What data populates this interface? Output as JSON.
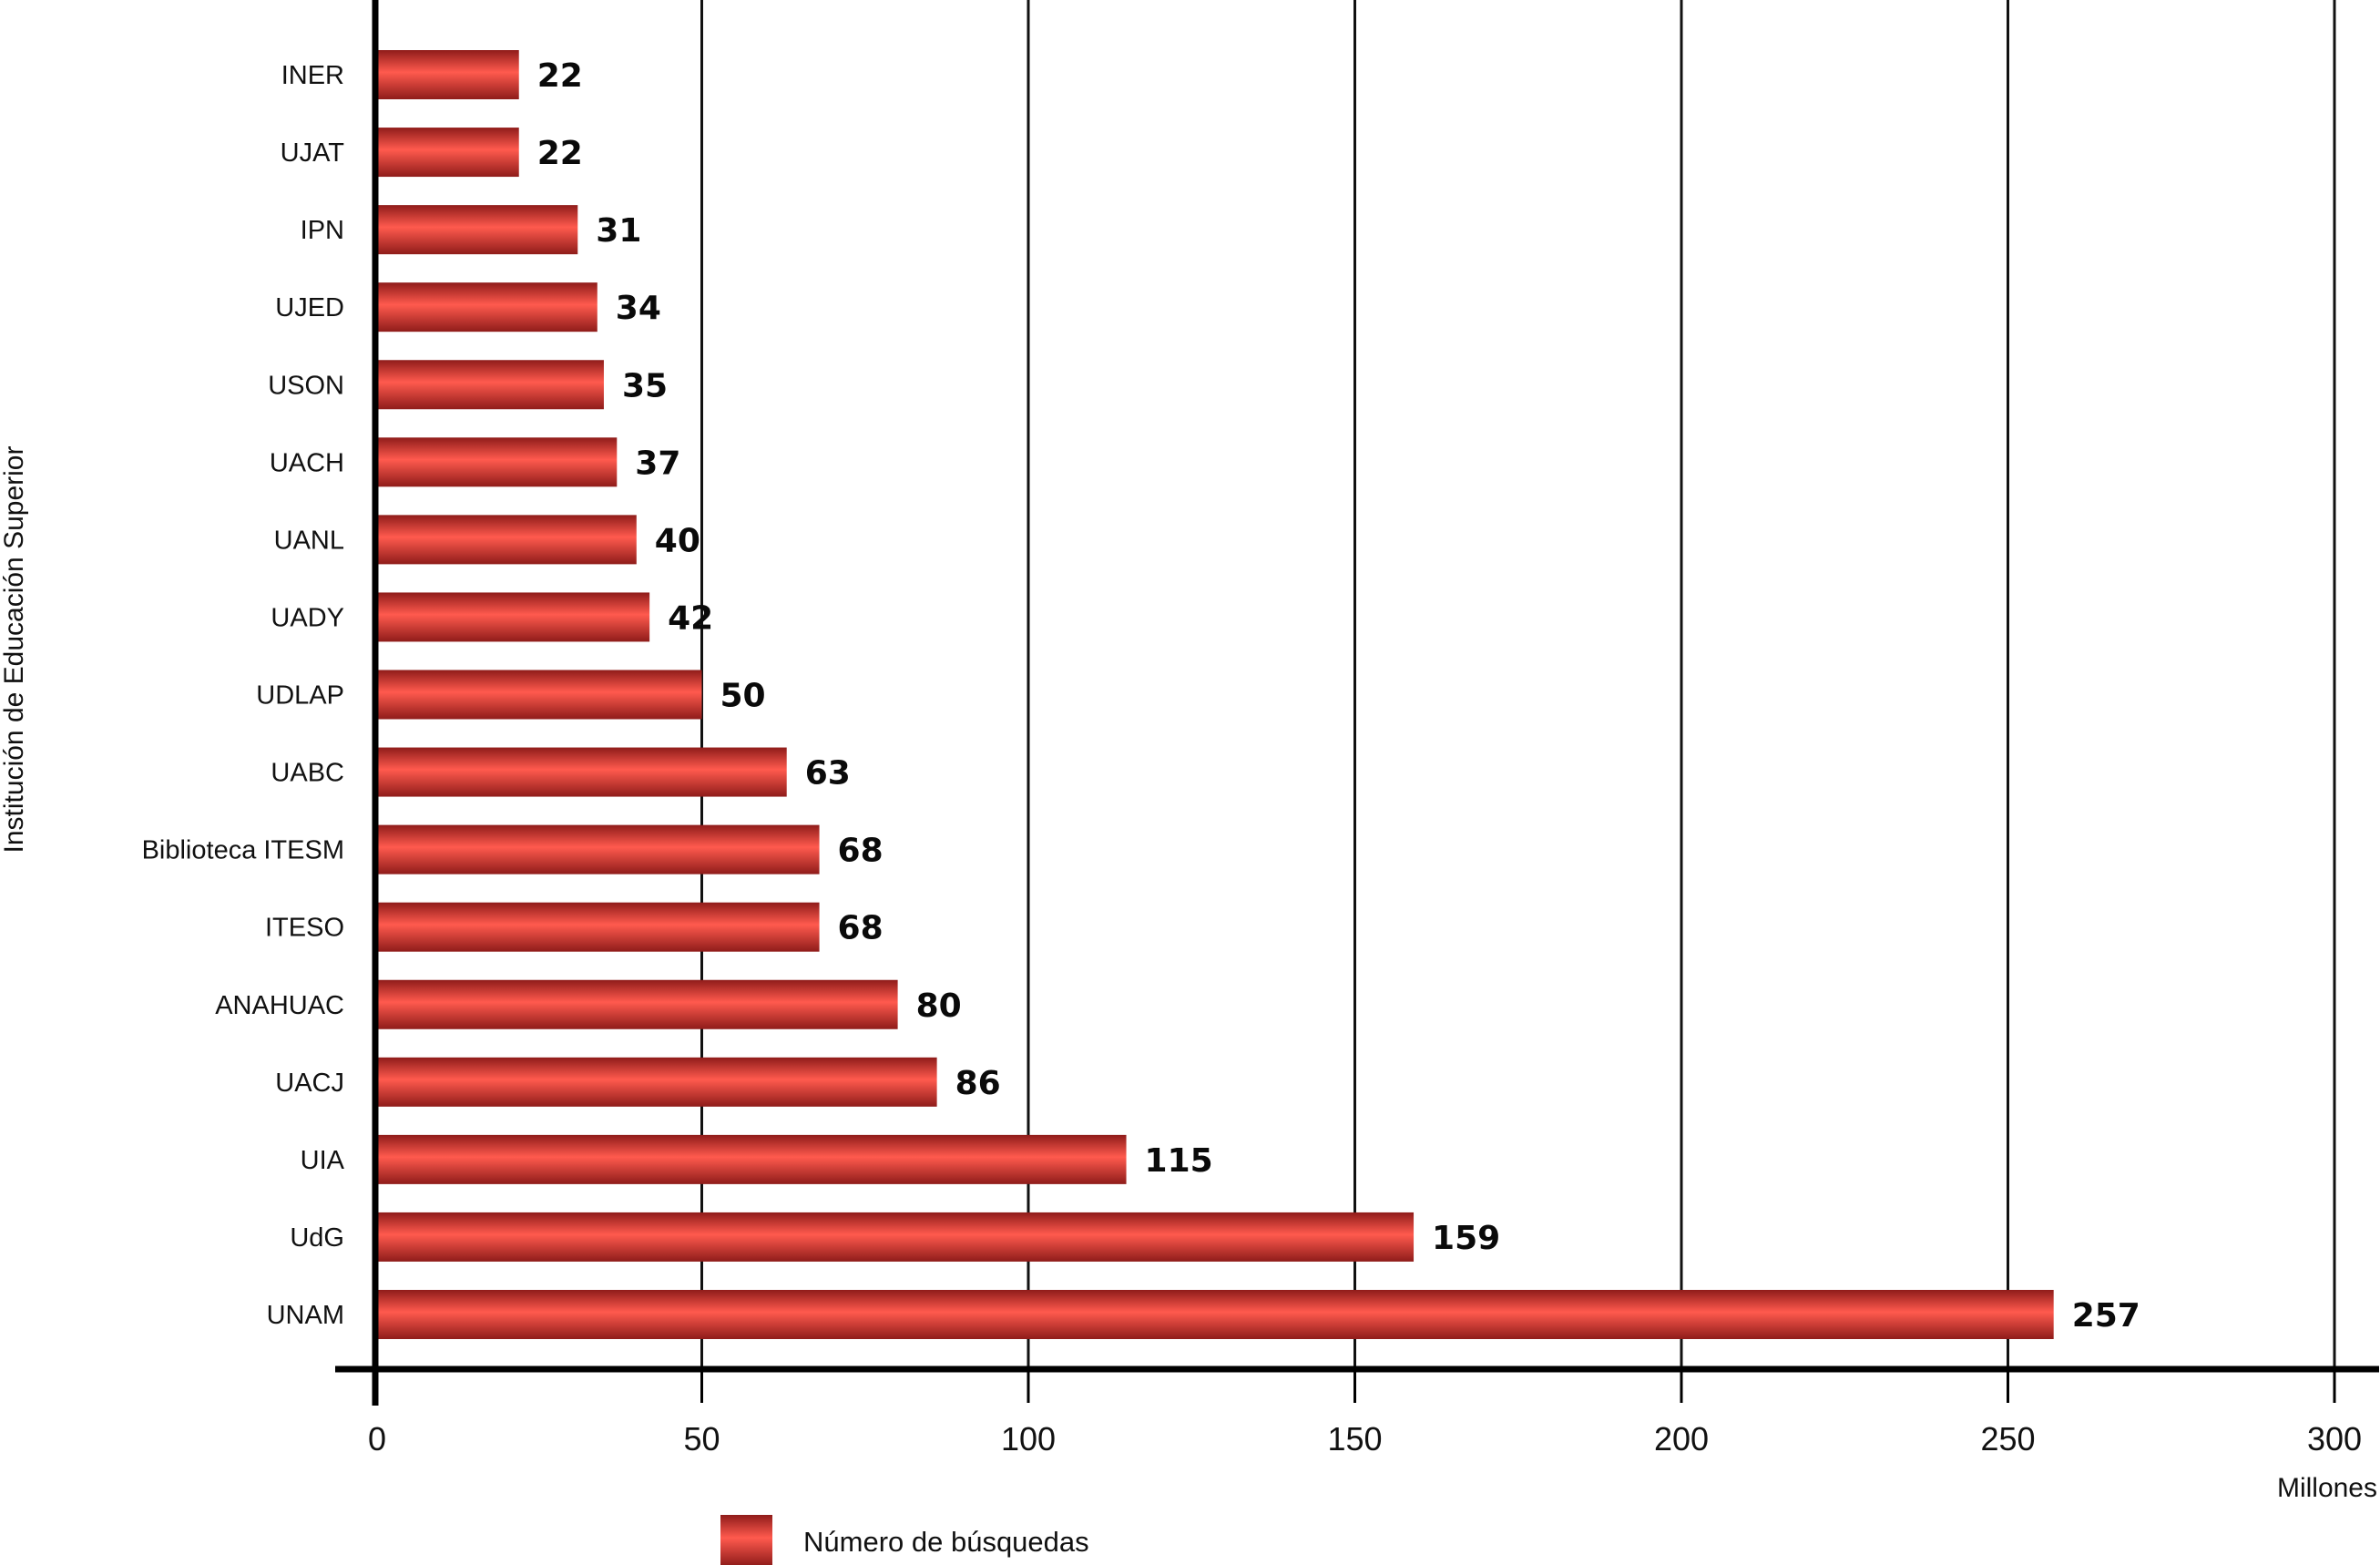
{
  "chart_data": {
    "type": "bar",
    "orientation": "horizontal",
    "categories": [
      "INER",
      "UJAT",
      "IPN",
      "UJED",
      "USON",
      "UACH",
      "UANL",
      "UADY",
      "UDLAP",
      "UABC",
      "Biblioteca ITESM",
      "ITESO",
      "ANAHUAC",
      "UACJ",
      "UIA",
      "UdG",
      "UNAM"
    ],
    "series": [
      {
        "name": "Número de búsquedas",
        "values": [
          22,
          22,
          31,
          34,
          35,
          37,
          40,
          42,
          50,
          63,
          68,
          68,
          80,
          86,
          115,
          159,
          257
        ],
        "color": "#d93a35"
      }
    ],
    "xlim": [
      0,
      300
    ],
    "xticks": [
      "0",
      "50",
      "100",
      "150",
      "200",
      "250",
      "300"
    ],
    "xlabel": "Millones",
    "ylabel": "Institución de Educación Superior",
    "grid": "vertical",
    "legend": "bottom",
    "bar_dark_color": "#8f1c1a",
    "bar_light_color": "#ff5a4e"
  }
}
